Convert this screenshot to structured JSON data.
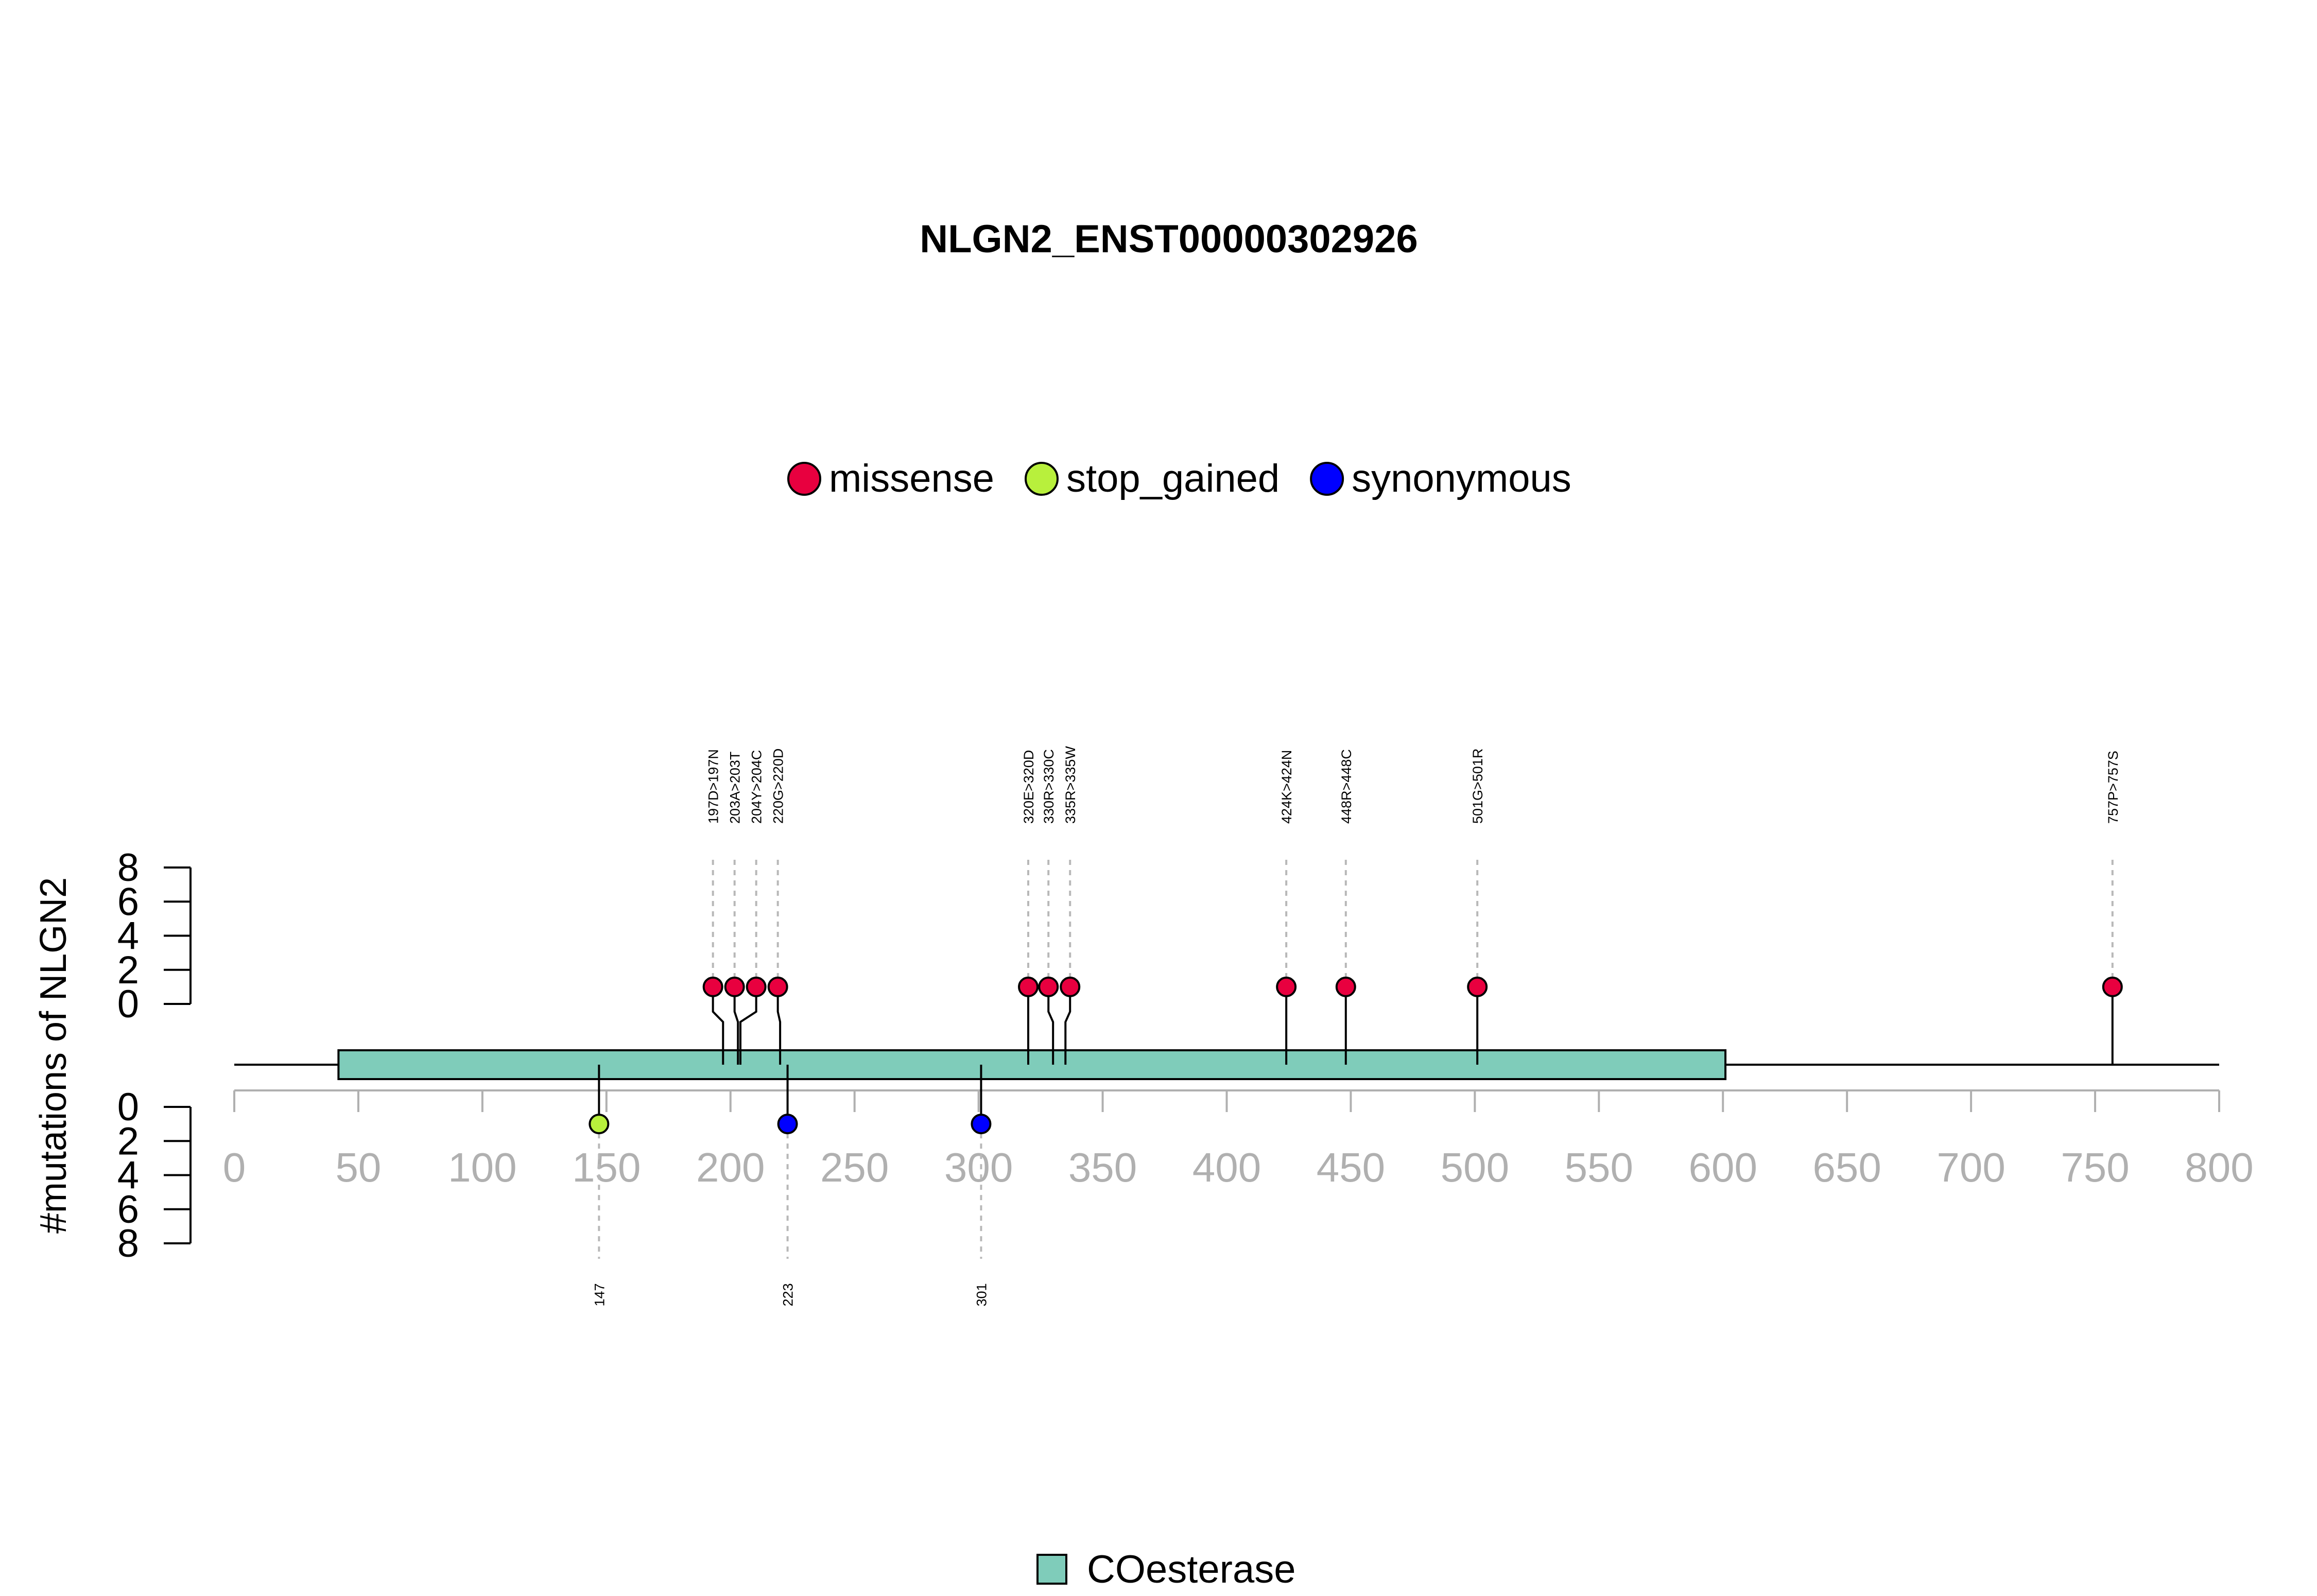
{
  "chart_data": {
    "type": "lollipop",
    "title": "NLGN2_ENST00000302926",
    "ylabel": "#mutations of NLGN2",
    "xlim": [
      0,
      800
    ],
    "x_ticks": [
      0,
      50,
      100,
      150,
      200,
      250,
      300,
      350,
      400,
      450,
      500,
      550,
      600,
      650,
      700,
      750,
      800
    ],
    "y_ticks_top": [
      0,
      2,
      4,
      6,
      8
    ],
    "y_ticks_bottom": [
      0,
      2,
      4,
      6,
      8
    ],
    "ylim_top": [
      0,
      8
    ],
    "ylim_bottom": [
      0,
      8
    ],
    "legend": [
      {
        "label": "missense",
        "color": "#e8003f"
      },
      {
        "label": "stop_gained",
        "color": "#b8f03c"
      },
      {
        "label": "synonymous",
        "color": "#0000ff"
      }
    ],
    "colors": {
      "missense": "#e8003f",
      "stop_gained": "#b8f03c",
      "synonymous": "#0000ff",
      "domain": "#7fccba"
    },
    "domains": [
      {
        "name": "COesterase",
        "start": 42,
        "end": 601,
        "color": "#7fccba"
      }
    ],
    "domain_legend": [
      {
        "label": "COesterase",
        "color": "#7fccba"
      }
    ],
    "mutations_top": [
      {
        "label": "197D>197N",
        "position": 197,
        "count": 1,
        "type": "missense"
      },
      {
        "label": "203A>203T",
        "position": 203,
        "count": 1,
        "type": "missense"
      },
      {
        "label": "204Y>204C",
        "position": 204,
        "count": 1,
        "type": "missense"
      },
      {
        "label": "220G>220D",
        "position": 220,
        "count": 1,
        "type": "missense"
      },
      {
        "label": "320E>320D",
        "position": 320,
        "count": 1,
        "type": "missense"
      },
      {
        "label": "330R>330C",
        "position": 330,
        "count": 1,
        "type": "missense"
      },
      {
        "label": "335R>335W",
        "position": 335,
        "count": 1,
        "type": "missense"
      },
      {
        "label": "424K>424N",
        "position": 424,
        "count": 1,
        "type": "missense"
      },
      {
        "label": "448R>448C",
        "position": 448,
        "count": 1,
        "type": "missense"
      },
      {
        "label": "501G>501R",
        "position": 501,
        "count": 1,
        "type": "missense"
      },
      {
        "label": "757P>757S",
        "position": 757,
        "count": 1,
        "type": "missense"
      }
    ],
    "mutations_bottom": [
      {
        "label": "147",
        "position": 147,
        "count": 1,
        "type": "stop_gained"
      },
      {
        "label": "223",
        "position": 223,
        "count": 1,
        "type": "synonymous"
      },
      {
        "label": "301",
        "position": 301,
        "count": 1,
        "type": "synonymous"
      }
    ]
  }
}
